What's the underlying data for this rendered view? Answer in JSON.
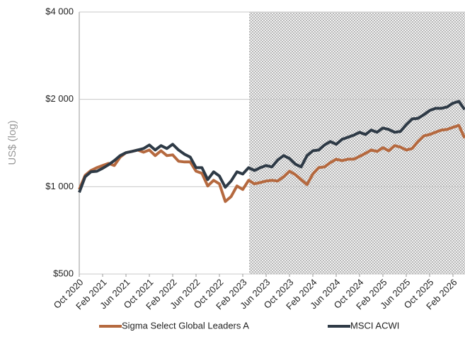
{
  "chart_data": {
    "type": "line",
    "y_label": "US$ (log)",
    "log_scale": true,
    "grid": true,
    "legend": "bottom",
    "ylim": [
      500,
      4000
    ],
    "yticks": [
      {
        "value": 500,
        "label": "$500"
      },
      {
        "value": 1000,
        "label": "$1 000"
      },
      {
        "value": 2000,
        "label": "$2 000"
      },
      {
        "value": 4000,
        "label": "$4 000"
      }
    ],
    "categories": [
      "Oct 2020",
      null,
      null,
      null,
      "Feb 2021",
      null,
      null,
      null,
      "Jun 2021",
      null,
      null,
      null,
      "Oct 2021",
      null,
      null,
      null,
      "Feb 2022",
      null,
      null,
      null,
      "Jun 2022",
      null,
      null,
      null,
      "Oct 2022",
      null,
      null,
      null,
      "Feb 2023",
      null,
      null,
      null,
      "Jun 2023",
      null,
      null,
      null,
      "Oct 2023",
      null,
      null,
      null,
      "Feb 2024",
      null,
      null,
      null,
      "Jun 2024",
      null,
      null,
      null,
      "Oct 2024",
      null,
      null,
      null,
      "Feb 2025",
      null,
      null,
      null,
      "Jun 2025",
      null,
      null,
      null,
      "Oct 2025",
      null,
      null,
      null,
      "Feb 2026",
      null,
      null
    ],
    "series": [
      {
        "name": "Sigma Select Global Leaders A",
        "color": "#b5693f",
        "values": [
          978,
          1094,
          1137,
          1163,
          1183,
          1203,
          1183,
          1265,
          1310,
          1323,
          1338,
          1315,
          1338,
          1280,
          1330,
          1280,
          1287,
          1224,
          1217,
          1217,
          1131,
          1112,
          1006,
          1052,
          1023,
          889,
          924,
          1006,
          978,
          1052,
          1023,
          1034,
          1046,
          1052,
          1046,
          1082,
          1131,
          1100,
          1058,
          1017,
          1106,
          1163,
          1170,
          1210,
          1244,
          1230,
          1244,
          1244,
          1272,
          1302,
          1338,
          1323,
          1362,
          1330,
          1385,
          1369,
          1338,
          1354,
          1431,
          1497,
          1513,
          1540,
          1567,
          1575,
          1602,
          1627,
          1471
        ]
      },
      {
        "name": "MSCI ACWI",
        "color": "#2e3a46",
        "values": [
          956,
          1082,
          1125,
          1130,
          1157,
          1190,
          1230,
          1280,
          1310,
          1323,
          1338,
          1354,
          1392,
          1338,
          1385,
          1354,
          1400,
          1338,
          1294,
          1265,
          1163,
          1163,
          1058,
          1125,
          1088,
          995,
          1046,
          1125,
          1106,
          1163,
          1137,
          1163,
          1183,
          1170,
          1237,
          1280,
          1251,
          1196,
          1170,
          1280,
          1330,
          1338,
          1392,
          1431,
          1400,
          1456,
          1480,
          1505,
          1540,
          1513,
          1567,
          1540,
          1593,
          1575,
          1540,
          1550,
          1636,
          1712,
          1720,
          1770,
          1830,
          1862,
          1862,
          1883,
          1940,
          1968,
          1845
        ]
      }
    ]
  }
}
